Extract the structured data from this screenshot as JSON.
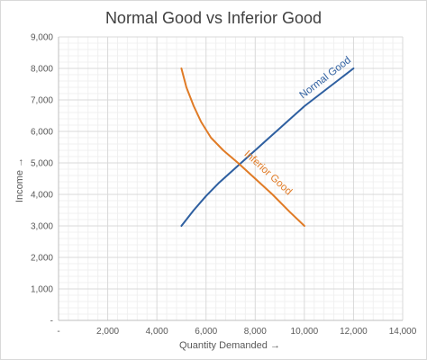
{
  "chart_data": {
    "type": "line",
    "title": "Normal Good vs Inferior Good",
    "xlabel": "Quantity Demanded →",
    "ylabel": "Income →",
    "xlim": [
      0,
      14000
    ],
    "ylim": [
      0,
      9000
    ],
    "x_ticks": [
      "-",
      "2,000",
      "4,000",
      "6,000",
      "8,000",
      "10,000",
      "12,000",
      "14,000"
    ],
    "y_ticks": [
      "-",
      "1,000",
      "2,000",
      "3,000",
      "4,000",
      "5,000",
      "6,000",
      "7,000",
      "8,000",
      "9,000"
    ],
    "grid": true,
    "legend": "none",
    "series": [
      {
        "name": "Normal Good",
        "color": "#2e5fa0",
        "x": [
          5000,
          5500,
          6000,
          6500,
          7000,
          7500,
          8000,
          8500,
          9000,
          9500,
          10000,
          10500,
          11000,
          11500,
          12000
        ],
        "y": [
          3000,
          3500,
          3950,
          4350,
          4700,
          5050,
          5400,
          5750,
          6100,
          6450,
          6800,
          7100,
          7400,
          7700,
          8000
        ]
      },
      {
        "name": "Inferior Good",
        "color": "#e07b26",
        "x": [
          5000,
          5200,
          5500,
          5800,
          6200,
          6700,
          7300,
          8000,
          8700,
          9400,
          10000
        ],
        "y": [
          8000,
          7400,
          6800,
          6300,
          5800,
          5400,
          5000,
          4500,
          4000,
          3450,
          3000
        ]
      }
    ]
  }
}
